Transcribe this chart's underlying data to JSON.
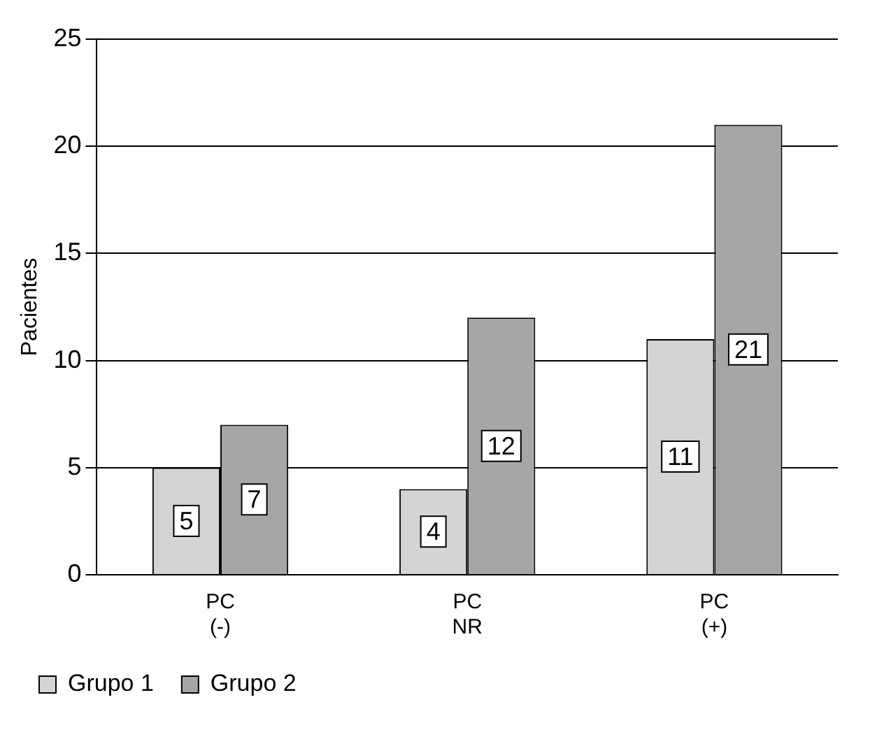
{
  "chart_data": {
    "type": "bar",
    "ylabel": "Pacientes",
    "categories": [
      "PC\n(-)",
      "PC\nNR",
      "PC\n(+)"
    ],
    "series": [
      {
        "name": "Grupo 1",
        "color": "#d4d4d4",
        "values": [
          5,
          4,
          11
        ]
      },
      {
        "name": "Grupo 2",
        "color": "#a6a6a6",
        "values": [
          7,
          12,
          21
        ]
      }
    ],
    "ylim": [
      0,
      25
    ],
    "yticks": [
      0,
      5,
      10,
      15,
      20,
      25
    ],
    "grid": "y",
    "legend": "bottom left",
    "data_labels": true
  }
}
